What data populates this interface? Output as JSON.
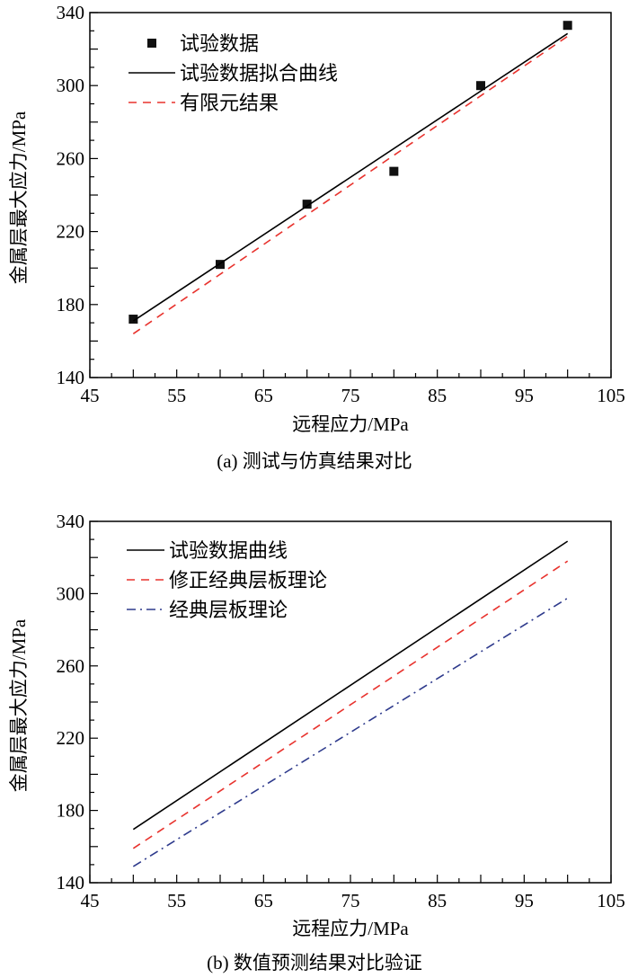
{
  "chart_data": [
    {
      "type": "scatter+line",
      "caption": "(a) 测试与仿真结果对比",
      "xlabel": "远程应力/MPa",
      "ylabel": "金属层最大应力/MPa",
      "xlim": [
        45,
        105
      ],
      "ylim": [
        140,
        340
      ],
      "xticks": [
        "45",
        "55",
        "65",
        "75",
        "85",
        "95",
        "105"
      ],
      "yticks": [
        "140",
        "180",
        "220",
        "260",
        "300",
        "340"
      ],
      "legend_position": "top-left",
      "series": [
        {
          "name": "试验数据",
          "kind": "scatter",
          "color": "#111111",
          "x": [
            50,
            60,
            70,
            80,
            90,
            100
          ],
          "y": [
            172,
            202,
            235,
            253,
            300,
            333
          ]
        },
        {
          "name": "试验数据拟合曲线",
          "kind": "line",
          "style": "solid",
          "color": "#000000",
          "x": [
            50,
            100
          ],
          "y": [
            171,
            328.5
          ]
        },
        {
          "name": "有限元结果",
          "kind": "line",
          "style": "dash",
          "color": "#e8322d",
          "x": [
            50,
            100
          ],
          "y": [
            164,
            327
          ]
        }
      ]
    },
    {
      "type": "line",
      "caption": "(b) 数值预测结果对比验证",
      "xlabel": "远程应力/MPa",
      "ylabel": "金属层最大应力/MPa",
      "xlim": [
        45,
        105
      ],
      "ylim": [
        140,
        340
      ],
      "xticks": [
        "45",
        "55",
        "65",
        "75",
        "85",
        "95",
        "105"
      ],
      "yticks": [
        "140",
        "180",
        "220",
        "260",
        "300",
        "340"
      ],
      "legend_position": "top-left",
      "series": [
        {
          "name": "试验数据曲线",
          "kind": "line",
          "style": "solid",
          "color": "#000000",
          "x": [
            50,
            100
          ],
          "y": [
            169.5,
            329
          ]
        },
        {
          "name": "修正经典层板理论",
          "kind": "line",
          "style": "dash",
          "color": "#e8322d",
          "x": [
            50,
            100
          ],
          "y": [
            159,
            318
          ]
        },
        {
          "name": "经典层板理论",
          "kind": "line",
          "style": "dashdot",
          "color": "#2e3a8c",
          "x": [
            50,
            100
          ],
          "y": [
            149,
            297.5
          ]
        }
      ]
    }
  ]
}
